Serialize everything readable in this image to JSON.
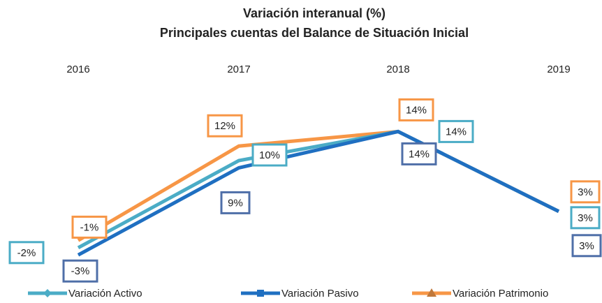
{
  "chart_data": {
    "type": "line",
    "title": "Variación interanual  (%)",
    "subtitle": "Principales cuentas del  Balance de Situación Inicial",
    "categories": [
      "2016",
      "2017",
      "2018",
      "2019"
    ],
    "ylim": [
      -5,
      20
    ],
    "series": [
      {
        "name": "Variación Activo",
        "color": "#4bacc6",
        "values": [
          -2,
          10,
          14,
          3
        ],
        "value_labels": [
          "-2%",
          "10%",
          "14%",
          "3%"
        ]
      },
      {
        "name": "Variación Pasivo",
        "color": "#1f6fc1",
        "values": [
          -3,
          9,
          14,
          3
        ],
        "value_labels": [
          "-3%",
          "9%",
          "14%",
          "3%"
        ]
      },
      {
        "name": "Variación Patrimonio",
        "color": "#f79646",
        "values": [
          -1,
          12,
          14,
          3
        ],
        "value_labels": [
          "-1%",
          "12%",
          "14%",
          "3%"
        ]
      }
    ]
  }
}
